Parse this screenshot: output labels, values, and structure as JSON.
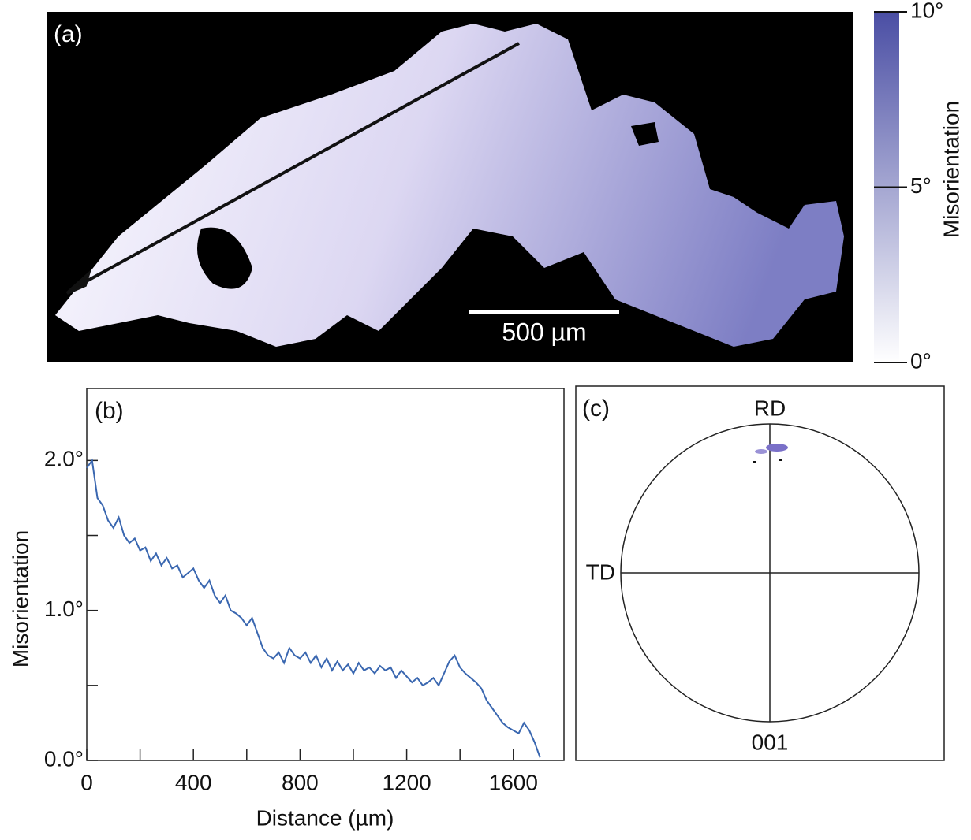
{
  "chart_data": [
    {
      "type": "heatmap",
      "panel_label": "(a)",
      "scale_bar": "500 µm",
      "colorbar_label": "Misorientation",
      "colors": [
        "#ffffff",
        "#4a4ea4"
      ],
      "clim": [
        0,
        10
      ],
      "cticks": [
        {
          "value": 0,
          "label": "0°"
        },
        {
          "value": 5,
          "label": "5°"
        },
        {
          "value": 10,
          "label": "10°"
        }
      ]
    },
    {
      "type": "line",
      "panel_label": "(b)",
      "xlabel": "Distance (µm)",
      "ylabel": "Misorientation",
      "color": "#3a67b0",
      "x": [
        0,
        20,
        40,
        60,
        80,
        100,
        120,
        140,
        160,
        180,
        200,
        220,
        240,
        260,
        280,
        300,
        320,
        340,
        360,
        380,
        400,
        420,
        440,
        460,
        480,
        500,
        520,
        540,
        560,
        580,
        600,
        620,
        640,
        660,
        680,
        700,
        720,
        740,
        760,
        780,
        800,
        820,
        840,
        860,
        880,
        900,
        920,
        940,
        960,
        980,
        1000,
        1020,
        1040,
        1060,
        1080,
        1100,
        1120,
        1140,
        1160,
        1180,
        1200,
        1220,
        1240,
        1260,
        1280,
        1300,
        1320,
        1340,
        1360,
        1380,
        1400,
        1420,
        1440,
        1460,
        1480,
        1500,
        1520,
        1540,
        1560,
        1580,
        1600,
        1620,
        1640,
        1660,
        1680,
        1700
      ],
      "values": [
        1.95,
        2.0,
        1.75,
        1.7,
        1.6,
        1.55,
        1.62,
        1.5,
        1.45,
        1.48,
        1.4,
        1.42,
        1.33,
        1.38,
        1.3,
        1.35,
        1.28,
        1.3,
        1.22,
        1.25,
        1.28,
        1.2,
        1.15,
        1.2,
        1.1,
        1.05,
        1.1,
        1.0,
        0.98,
        0.95,
        0.9,
        0.95,
        0.85,
        0.75,
        0.7,
        0.68,
        0.72,
        0.65,
        0.75,
        0.7,
        0.68,
        0.72,
        0.65,
        0.7,
        0.62,
        0.68,
        0.6,
        0.66,
        0.6,
        0.64,
        0.58,
        0.65,
        0.6,
        0.62,
        0.58,
        0.63,
        0.6,
        0.62,
        0.55,
        0.6,
        0.56,
        0.52,
        0.55,
        0.5,
        0.52,
        0.55,
        0.5,
        0.58,
        0.66,
        0.7,
        0.62,
        0.58,
        0.55,
        0.52,
        0.48,
        0.4,
        0.35,
        0.3,
        0.25,
        0.22,
        0.2,
        0.18,
        0.25,
        0.2,
        0.12,
        0.02
      ],
      "xlim": [
        0,
        1790
      ],
      "ylim": [
        0,
        2.48
      ],
      "xticks": [
        0,
        400,
        800,
        1200,
        1600
      ],
      "xminor": [
        200,
        600,
        1000,
        1400
      ],
      "yticks": [
        {
          "value": 0,
          "label": "0.0°"
        },
        {
          "value": 1,
          "label": "1.0°"
        },
        {
          "value": 2,
          "label": "2.0°"
        }
      ],
      "yminor": [
        0.5,
        1.5
      ]
    },
    {
      "type": "pole_figure",
      "panel_label": "(c)",
      "top_label": "RD",
      "left_label": "TD",
      "bottom_label": "001"
    }
  ]
}
